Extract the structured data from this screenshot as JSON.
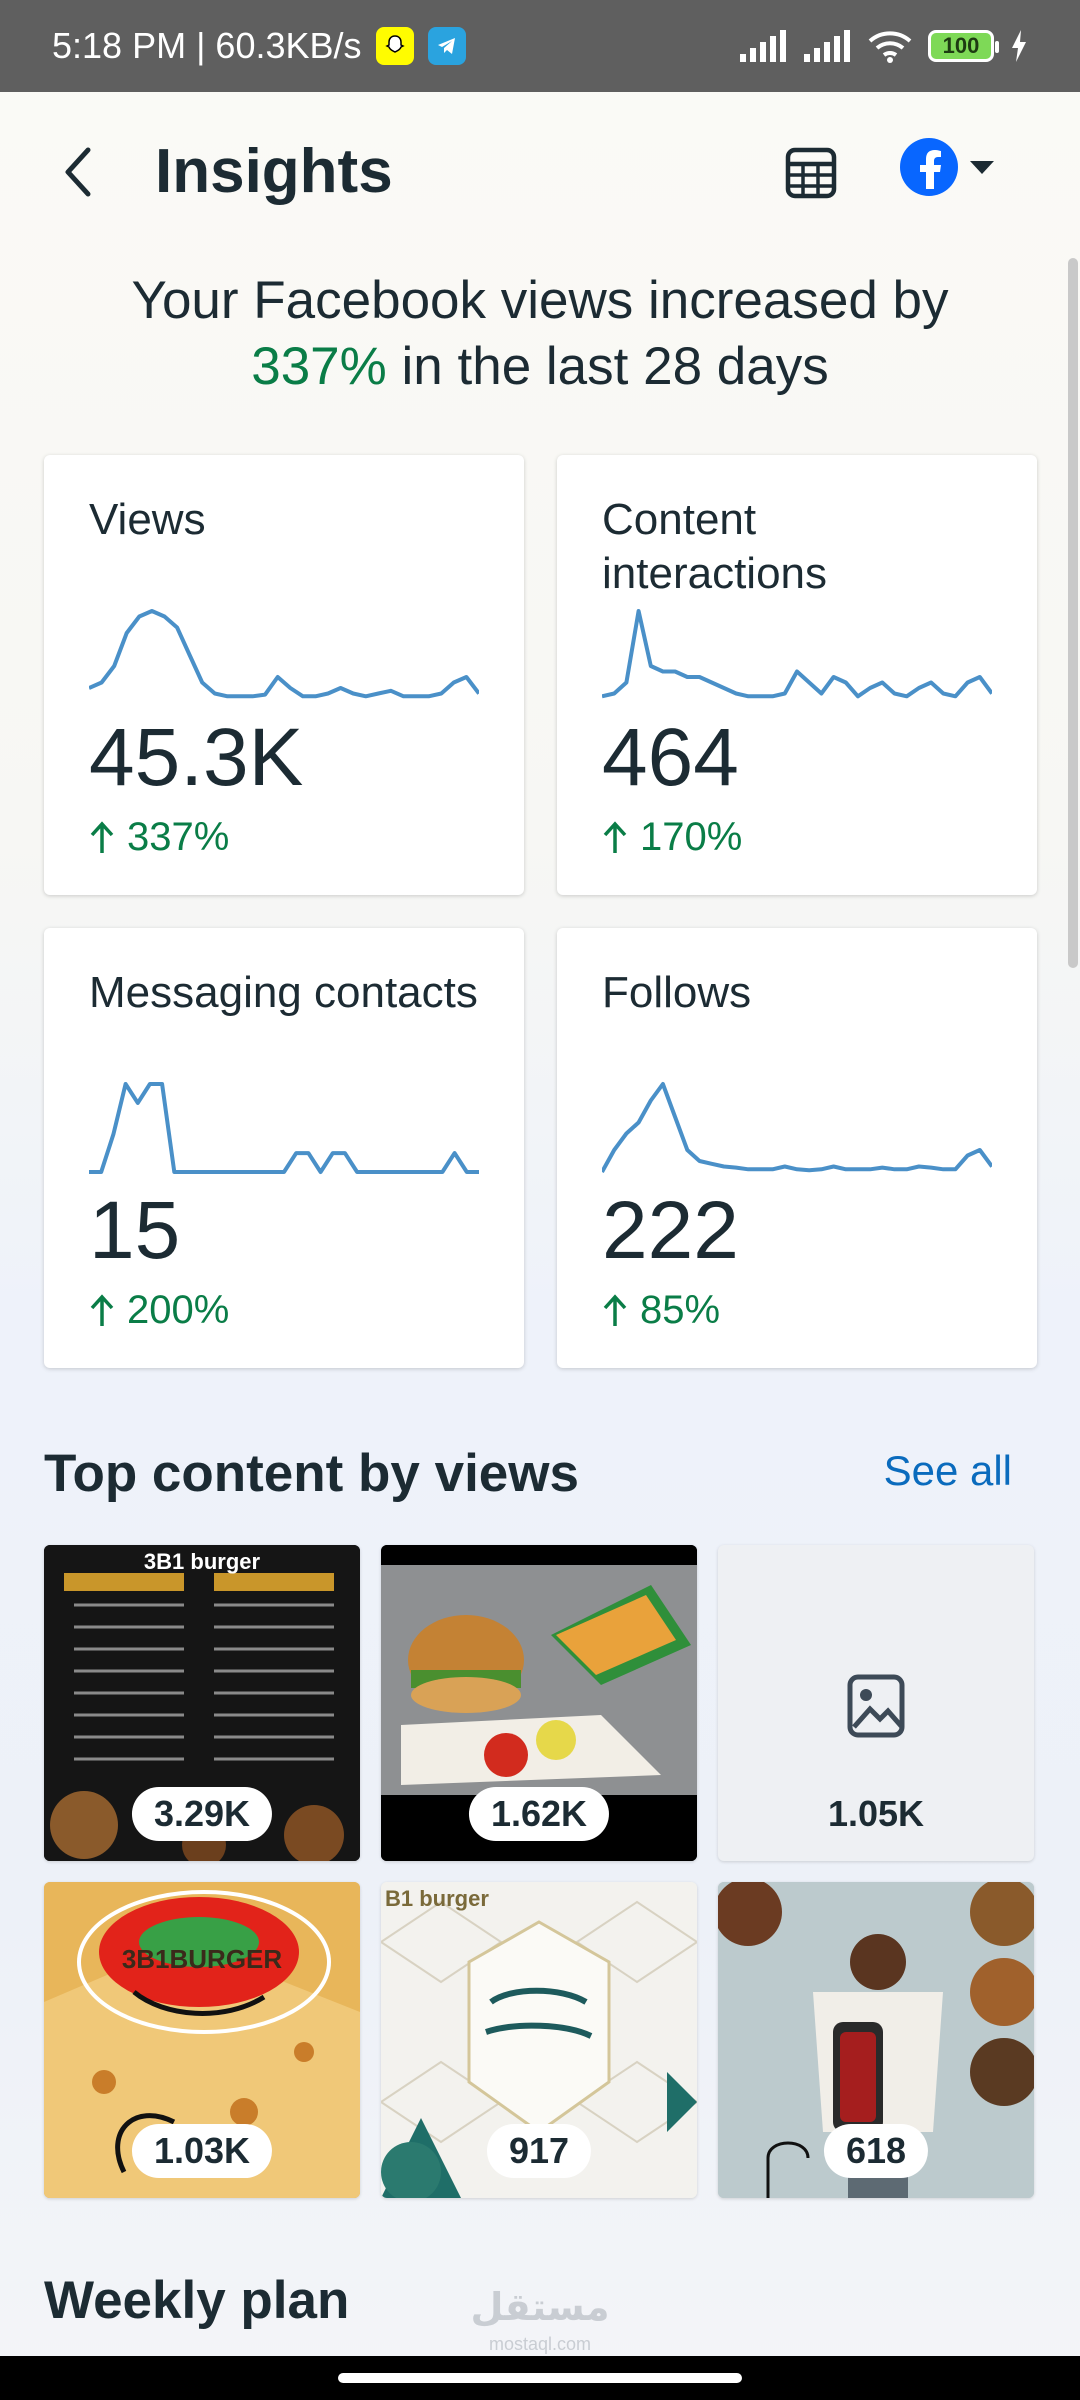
{
  "status_bar": {
    "time_speed": "5:18 PM | 60.3KB/s",
    "battery": "100",
    "icons": [
      "snapchat-icon",
      "telegram-icon",
      "signal-icon",
      "signal-icon",
      "wifi-icon",
      "battery-icon",
      "charging-icon"
    ]
  },
  "header": {
    "title": "Insights",
    "icons": [
      "back-arrow-icon",
      "table-icon",
      "facebook-icon",
      "caret-down-icon"
    ]
  },
  "headline": {
    "prefix": "Your Facebook views increased by",
    "percent": "337%",
    "suffix": "in the last 28 days"
  },
  "metrics": [
    {
      "title": "Views",
      "value": "45.3K",
      "change": "337%",
      "trend": [
        2,
        3,
        6,
        12,
        15,
        16,
        15,
        13,
        8,
        3,
        1,
        0.5,
        0.5,
        0.5,
        0.8,
        4,
        2,
        0.5,
        0.5,
        1,
        2,
        1,
        0.5,
        1,
        1.5,
        0.5,
        0.5,
        0.5,
        1,
        3,
        4,
        1
      ]
    },
    {
      "title": "Content interactions",
      "value": "464",
      "change": "170%",
      "trend": [
        0.5,
        1,
        3,
        16,
        6,
        5,
        5,
        4,
        4,
        3,
        2,
        1,
        0.5,
        0.5,
        0.5,
        1,
        5,
        3,
        1,
        4,
        3,
        0.5,
        2,
        3,
        1,
        0.5,
        2,
        3,
        1,
        0.5,
        3,
        4,
        1
      ]
    },
    {
      "title": "Messaging contacts",
      "value": "15",
      "change": "200%",
      "trend": [
        0,
        0,
        6,
        14,
        11,
        14,
        14,
        0,
        0,
        0,
        0,
        0,
        0,
        0,
        0,
        0,
        0,
        3,
        3,
        0,
        3,
        3,
        0,
        0,
        0,
        0,
        0,
        0,
        0,
        0,
        3,
        0,
        0
      ]
    },
    {
      "title": "Follows",
      "value": "222",
      "change": "85%",
      "trend": [
        0,
        4,
        7,
        9,
        13,
        16,
        10,
        4,
        2,
        1.5,
        1,
        0.8,
        0.5,
        0.5,
        0.5,
        1,
        0.5,
        0.3,
        0.5,
        1,
        0.5,
        0.5,
        0.5,
        0.8,
        0.5,
        0.5,
        1,
        0.8,
        0.5,
        0.5,
        3,
        4,
        1
      ]
    }
  ],
  "top_content": {
    "title": "Top content by views",
    "see_all": "See all",
    "items": [
      {
        "views": "3.29K",
        "caption": "3B1 burger",
        "kind": "menu"
      },
      {
        "views": "1.62K",
        "kind": "burger-photo"
      },
      {
        "views": "1.05K",
        "kind": "placeholder"
      },
      {
        "views": "1.03K",
        "caption": "3B1BURGER",
        "kind": "crepe-photo"
      },
      {
        "views": "917",
        "caption": "B1 burger",
        "kind": "greeting"
      },
      {
        "views": "618",
        "kind": "illustration"
      }
    ]
  },
  "weekly_plan": {
    "title": "Weekly plan"
  },
  "watermark": {
    "arabic": "مستقل",
    "latin": "mostaql.com"
  },
  "colors": {
    "accent_green": "#0a7d47",
    "link_blue": "#0a6bbd",
    "spark_blue": "#4a90c8",
    "facebook_blue": "#0866ff"
  }
}
